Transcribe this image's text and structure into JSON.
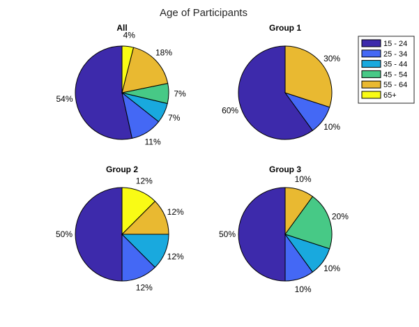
{
  "chart_data": {
    "title": "Age of Participants",
    "legend": {
      "placement": "top-right",
      "entries": [
        {
          "label": "15 - 24",
          "color": "#3D2AAB"
        },
        {
          "label": "25 - 34",
          "color": "#4468F5"
        },
        {
          "label": "35 - 44",
          "color": "#19A9DE"
        },
        {
          "label": "45 - 54",
          "color": "#47C986"
        },
        {
          "label": "55 - 64",
          "color": "#E9B931"
        },
        {
          "label": "65+",
          "color": "#F9FB15"
        }
      ]
    },
    "charts": [
      {
        "type": "pie",
        "title": "All",
        "slices": [
          {
            "category": "15 - 24",
            "value": 54,
            "label": "54%"
          },
          {
            "category": "25 - 34",
            "value": 11,
            "label": "11%"
          },
          {
            "category": "35 - 44",
            "value": 7,
            "label": "7%"
          },
          {
            "category": "45 - 54",
            "value": 7,
            "label": "7%"
          },
          {
            "category": "55 - 64",
            "value": 18,
            "label": "18%"
          },
          {
            "category": "65+",
            "value": 4,
            "label": "4%"
          }
        ]
      },
      {
        "type": "pie",
        "title": "Group 1",
        "slices": [
          {
            "category": "15 - 24",
            "value": 60,
            "label": "60%"
          },
          {
            "category": "25 - 34",
            "value": 10,
            "label": "10%"
          },
          {
            "category": "55 - 64",
            "value": 30,
            "label": "30%"
          }
        ]
      },
      {
        "type": "pie",
        "title": "Group 2",
        "slices": [
          {
            "category": "15 - 24",
            "value": 50,
            "label": "50%"
          },
          {
            "category": "25 - 34",
            "value": 12.5,
            "label": "12%"
          },
          {
            "category": "35 - 44",
            "value": 12.5,
            "label": "12%"
          },
          {
            "category": "55 - 64",
            "value": 12.5,
            "label": "12%"
          },
          {
            "category": "65+",
            "value": 12.5,
            "label": "12%"
          }
        ]
      },
      {
        "type": "pie",
        "title": "Group 3",
        "slices": [
          {
            "category": "15 - 24",
            "value": 50,
            "label": "50%"
          },
          {
            "category": "25 - 34",
            "value": 10,
            "label": "10%"
          },
          {
            "category": "35 - 44",
            "value": 10,
            "label": "10%"
          },
          {
            "category": "45 - 54",
            "value": 20,
            "label": "20%"
          },
          {
            "category": "55 - 64",
            "value": 10,
            "label": "10%"
          }
        ]
      }
    ]
  }
}
